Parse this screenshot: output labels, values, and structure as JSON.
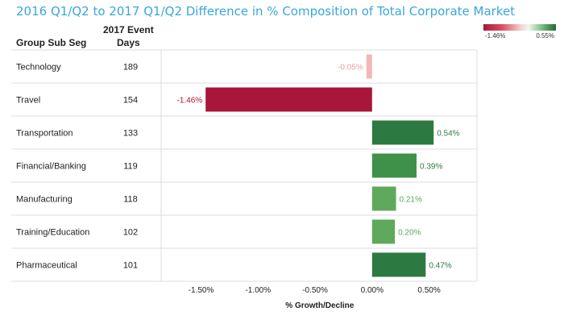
{
  "title": "2016 Q1/Q2 to 2017 Q1/Q2 Difference in % Composition of Total Corporate Market",
  "legend": {
    "min_label": "-1.46%",
    "max_label": "0.55%"
  },
  "columns": {
    "segment_header": "Group Sub Seg",
    "days_header_line1": "2017 Event",
    "days_header_line2": "Days"
  },
  "colors": {
    "negative_strong": "#a8163c",
    "negative_light": "#f2b8b6",
    "positive_dark": "#2c7a41",
    "positive_mid": "#3f9149",
    "positive_light": "#5ea95c"
  },
  "chart_data": {
    "type": "bar",
    "orientation": "horizontal",
    "categories": [
      "Technology",
      "Travel",
      "Transportation",
      "Financial/Banking",
      "Manufacturing",
      "Training/Education",
      "Pharmaceutical"
    ],
    "event_days": [
      189,
      154,
      133,
      119,
      118,
      102,
      101
    ],
    "values": [
      -0.05,
      -1.46,
      0.54,
      0.39,
      0.21,
      0.2,
      0.47
    ],
    "value_labels": [
      "-0.05%",
      "-1.46%",
      "0.54%",
      "0.39%",
      "0.21%",
      "0.20%",
      "0.47%"
    ],
    "xlabel": "% Growth/Decline",
    "xlim": [
      -1.85,
      0.92
    ],
    "xticks": [
      -1.5,
      -1.0,
      -0.5,
      0.0,
      0.5
    ],
    "xtick_labels": [
      "-1.50%",
      "-1.00%",
      "-0.50%",
      "0.00%",
      "0.50%"
    ],
    "legend_range": [
      -1.46,
      0.55
    ],
    "grid": false
  }
}
